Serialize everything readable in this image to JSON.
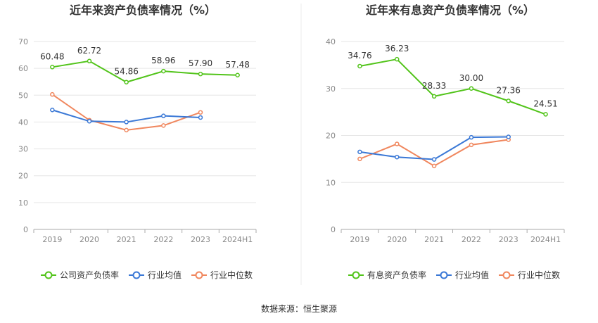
{
  "source": "数据来源：恒生聚源",
  "chart_data": [
    {
      "type": "line",
      "title": "近年来资产负债率情况（%）",
      "categories": [
        "2019",
        "2020",
        "2021",
        "2022",
        "2023",
        "2024H1"
      ],
      "ylim": [
        0,
        70
      ],
      "yticks": [
        0,
        10,
        20,
        30,
        40,
        50,
        60,
        70
      ],
      "grid": true,
      "legend_position": "bottom",
      "series": [
        {
          "name": "公司资产负债率",
          "color": "#52c41a",
          "values": [
            60.48,
            62.72,
            54.86,
            58.96,
            57.9,
            57.48
          ],
          "labels": [
            "60.48",
            "62.72",
            "54.86",
            "58.96",
            "57.90",
            "57.48"
          ]
        },
        {
          "name": "行业均值",
          "color": "#3a78d6",
          "values": [
            44.5,
            40.3,
            40.0,
            42.3,
            41.7,
            null
          ]
        },
        {
          "name": "行业中位数",
          "color": "#f0875e",
          "values": [
            50.3,
            40.7,
            37.0,
            38.7,
            43.6,
            null
          ]
        }
      ]
    },
    {
      "type": "line",
      "title": "近年来有息资产负债率情况（%）",
      "categories": [
        "2019",
        "2020",
        "2021",
        "2022",
        "2023",
        "2024H1"
      ],
      "ylim": [
        0,
        40
      ],
      "yticks": [
        0,
        10,
        20,
        30,
        40
      ],
      "grid": true,
      "legend_position": "bottom",
      "series": [
        {
          "name": "有息资产负债率",
          "color": "#52c41a",
          "values": [
            34.76,
            36.23,
            28.33,
            30.0,
            27.36,
            24.51
          ],
          "labels": [
            "34.76",
            "36.23",
            "28.33",
            "30.00",
            "27.36",
            "24.51"
          ]
        },
        {
          "name": "行业均值",
          "color": "#3a78d6",
          "values": [
            16.5,
            15.4,
            14.9,
            19.6,
            19.7,
            null
          ]
        },
        {
          "name": "行业中位数",
          "color": "#f0875e",
          "values": [
            15.0,
            18.2,
            13.5,
            18.0,
            19.1,
            null
          ]
        }
      ]
    }
  ]
}
